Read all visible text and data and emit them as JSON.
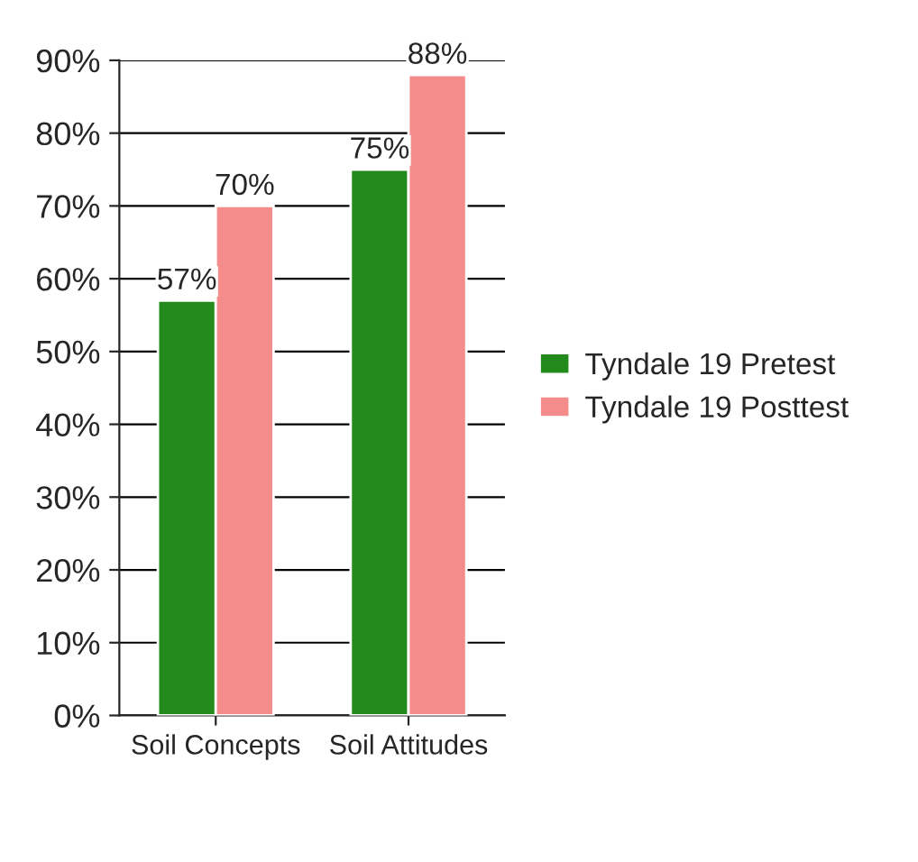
{
  "chart_data": {
    "type": "bar",
    "categories": [
      "Soil Concepts",
      "Soil Attitudes"
    ],
    "series": [
      {
        "name": "Tyndale 19 Pretest",
        "color": "#228b1c",
        "values": [
          57,
          75
        ],
        "value_labels": [
          "57%",
          "75%"
        ]
      },
      {
        "name": "Tyndale 19 Posttest",
        "color": "#f48c8c",
        "values": [
          70,
          88
        ],
        "value_labels": [
          "70%",
          "88%"
        ]
      }
    ],
    "ylim": [
      0,
      90
    ],
    "yticks": [
      {
        "value": 0,
        "label": "0%"
      },
      {
        "value": 10,
        "label": "10%"
      },
      {
        "value": 20,
        "label": "20%"
      },
      {
        "value": 30,
        "label": "30%"
      },
      {
        "value": 40,
        "label": "40%"
      },
      {
        "value": 50,
        "label": "50%"
      },
      {
        "value": 60,
        "label": "60%"
      },
      {
        "value": 70,
        "label": "70%"
      },
      {
        "value": 80,
        "label": "80%"
      },
      {
        "value": 90,
        "label": "90%"
      }
    ],
    "grid": "y",
    "legend": "right"
  }
}
